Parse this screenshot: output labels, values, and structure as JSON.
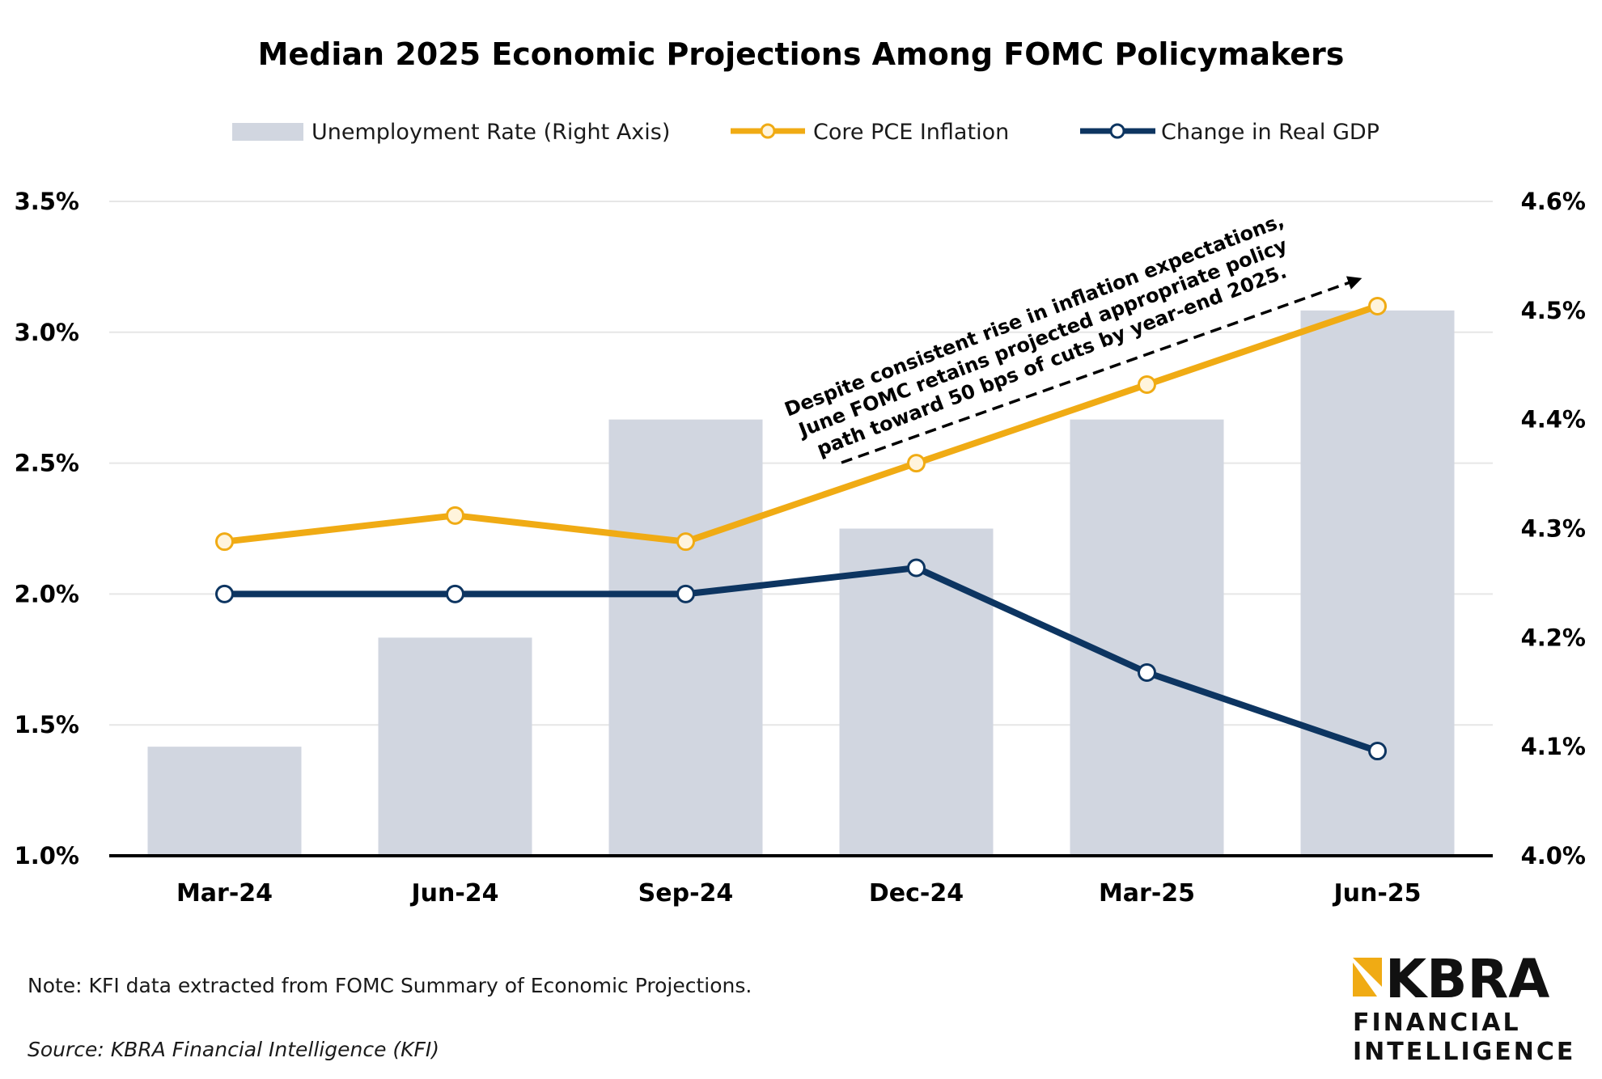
{
  "chart_data": {
    "type": "bar+line",
    "title": "Median 2025 Economic Projections Among FOMC Policymakers",
    "categories": [
      "Mar-24",
      "Jun-24",
      "Sep-24",
      "Dec-24",
      "Mar-25",
      "Jun-25"
    ],
    "series": [
      {
        "name": "Unemployment Rate (Right Axis)",
        "type": "bar",
        "axis": "right",
        "values": [
          4.1,
          4.2,
          4.4,
          4.3,
          4.4,
          4.5
        ],
        "color": "#D1D6E0"
      },
      {
        "name": "Core PCE Inflation",
        "type": "line",
        "axis": "left",
        "values": [
          2.2,
          2.3,
          2.2,
          2.5,
          2.8,
          3.1
        ],
        "color": "#F0AB14"
      },
      {
        "name": "Change in Real GDP",
        "type": "line",
        "axis": "left",
        "values": [
          2.0,
          2.0,
          2.0,
          2.1,
          1.7,
          1.4
        ],
        "color": "#0D3561"
      }
    ],
    "left_axis": {
      "min": 1.0,
      "max": 3.5,
      "ticks": [
        1.0,
        1.5,
        2.0,
        2.5,
        3.0,
        3.5
      ],
      "tick_labels": [
        "1.0%",
        "1.5%",
        "2.0%",
        "2.5%",
        "3.0%",
        "3.5%"
      ]
    },
    "right_axis": {
      "min": 4.0,
      "max": 4.6,
      "ticks": [
        4.0,
        4.1,
        4.2,
        4.3,
        4.4,
        4.5,
        4.6
      ],
      "tick_labels": [
        "4.0%",
        "4.1%",
        "4.2%",
        "4.3%",
        "4.4%",
        "4.5%",
        "4.6%"
      ]
    },
    "grid": true,
    "legend_position": "top-center",
    "annotation": {
      "lines": [
        "Despite consistent rise in inflation expectations,",
        "June FOMC retains projected appropriate policy",
        "path toward 50 bps of cuts by year-end 2025."
      ]
    }
  },
  "footer": {
    "note": "Note: KFI data extracted from FOMC Summary of Economic Projections.",
    "source": "Source: KBRA Financial Intelligence (KFI)"
  },
  "logo": {
    "name": "KBRA",
    "line1": "FINANCIAL",
    "line2": "INTELLIGENCE",
    "accent_color": "#F0AB14"
  }
}
